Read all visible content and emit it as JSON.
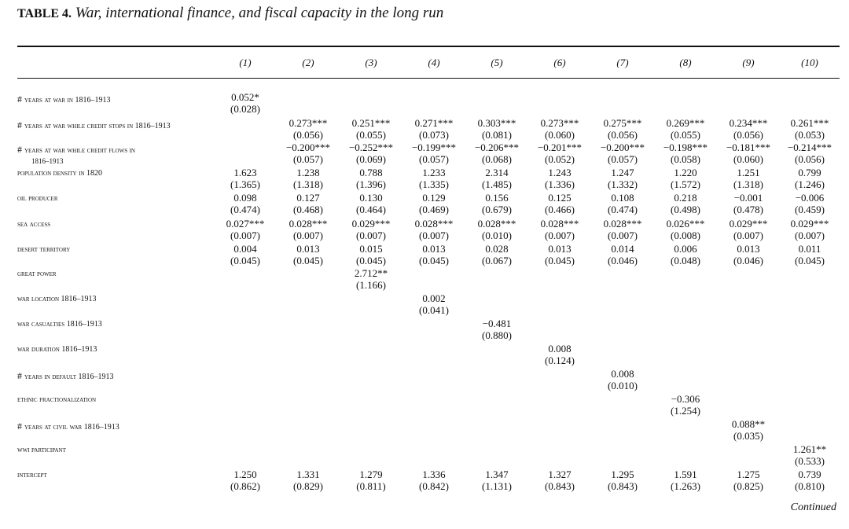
{
  "title": {
    "label": "TABLE 4.",
    "text": "War, international finance, and fiscal capacity in the long run"
  },
  "columns": [
    "(1)",
    "(2)",
    "(3)",
    "(4)",
    "(5)",
    "(6)",
    "(7)",
    "(8)",
    "(9)",
    "(10)"
  ],
  "rows": [
    {
      "hash": true,
      "label": "Years at war in 1816–1913",
      "coef": [
        "0.052*",
        "",
        "",
        "",
        "",
        "",
        "",
        "",
        "",
        ""
      ],
      "se": [
        "(0.028)",
        "",
        "",
        "",
        "",
        "",
        "",
        "",
        "",
        ""
      ]
    },
    {
      "hash": true,
      "label": "Years at war while credit stops in 1816–1913",
      "coef": [
        "",
        "0.273***",
        "0.251***",
        "0.271***",
        "0.303***",
        "0.273***",
        "0.275***",
        "0.269***",
        "0.234***",
        "0.261***"
      ],
      "se": [
        "",
        "(0.056)",
        "(0.055)",
        "(0.073)",
        "(0.081)",
        "(0.060)",
        "(0.056)",
        "(0.055)",
        "(0.056)",
        "(0.053)"
      ]
    },
    {
      "hash": true,
      "label": "Years at war while credit flows in",
      "sub": "1816–1913",
      "coef": [
        "",
        "−0.200***",
        "−0.252***",
        "−0.199***",
        "−0.206***",
        "−0.201***",
        "−0.200***",
        "−0.198***",
        "−0.181***",
        "−0.214***"
      ],
      "se": [
        "",
        "(0.057)",
        "(0.069)",
        "(0.057)",
        "(0.068)",
        "(0.052)",
        "(0.057)",
        "(0.058)",
        "(0.060)",
        "(0.056)"
      ]
    },
    {
      "hash": false,
      "label": "Population density in 1820",
      "coef": [
        "1.623",
        "1.238",
        "0.788",
        "1.233",
        "2.314",
        "1.243",
        "1.247",
        "1.220",
        "1.251",
        "0.799"
      ],
      "se": [
        "(1.365)",
        "(1.318)",
        "(1.396)",
        "(1.335)",
        "(1.485)",
        "(1.336)",
        "(1.332)",
        "(1.572)",
        "(1.318)",
        "(1.246)"
      ]
    },
    {
      "hash": false,
      "label": "Oil producer",
      "coef": [
        "0.098",
        "0.127",
        "0.130",
        "0.129",
        "0.156",
        "0.125",
        "0.108",
        "0.218",
        "−0.001",
        "−0.006"
      ],
      "se": [
        "(0.474)",
        "(0.468)",
        "(0.464)",
        "(0.469)",
        "(0.679)",
        "(0.466)",
        "(0.474)",
        "(0.498)",
        "(0.478)",
        "(0.459)"
      ]
    },
    {
      "hash": false,
      "label": "Sea access",
      "coef": [
        "0.027***",
        "0.028***",
        "0.029***",
        "0.028***",
        "0.028***",
        "0.028***",
        "0.028***",
        "0.026***",
        "0.029***",
        "0.029***"
      ],
      "se": [
        "(0.007)",
        "(0.007)",
        "(0.007)",
        "(0.007)",
        "(0.010)",
        "(0.007)",
        "(0.007)",
        "(0.008)",
        "(0.007)",
        "(0.007)"
      ]
    },
    {
      "hash": false,
      "label": "Desert territory",
      "coef": [
        "0.004",
        "0.013",
        "0.015",
        "0.013",
        "0.028",
        "0.013",
        "0.014",
        "0.006",
        "0.013",
        "0.011"
      ],
      "se": [
        "(0.045)",
        "(0.045)",
        "(0.045)",
        "(0.045)",
        "(0.067)",
        "(0.045)",
        "(0.046)",
        "(0.048)",
        "(0.046)",
        "(0.045)"
      ]
    },
    {
      "hash": false,
      "label": "Great power",
      "coef": [
        "",
        "",
        "2.712**",
        "",
        "",
        "",
        "",
        "",
        "",
        ""
      ],
      "se": [
        "",
        "",
        "(1.166)",
        "",
        "",
        "",
        "",
        "",
        "",
        ""
      ]
    },
    {
      "hash": false,
      "label": "War location 1816–1913",
      "coef": [
        "",
        "",
        "",
        "0.002",
        "",
        "",
        "",
        "",
        "",
        ""
      ],
      "se": [
        "",
        "",
        "",
        "(0.041)",
        "",
        "",
        "",
        "",
        "",
        ""
      ]
    },
    {
      "hash": false,
      "label": "War casualties 1816–1913",
      "coef": [
        "",
        "",
        "",
        "",
        "−0.481",
        "",
        "",
        "",
        "",
        ""
      ],
      "se": [
        "",
        "",
        "",
        "",
        "(0.880)",
        "",
        "",
        "",
        "",
        ""
      ]
    },
    {
      "hash": false,
      "label": "War duration 1816–1913",
      "coef": [
        "",
        "",
        "",
        "",
        "",
        "0.008",
        "",
        "",
        "",
        ""
      ],
      "se": [
        "",
        "",
        "",
        "",
        "",
        "(0.124)",
        "",
        "",
        "",
        ""
      ]
    },
    {
      "hash": true,
      "label": "Years in default 1816–1913",
      "coef": [
        "",
        "",
        "",
        "",
        "",
        "",
        "0.008",
        "",
        "",
        ""
      ],
      "se": [
        "",
        "",
        "",
        "",
        "",
        "",
        "(0.010)",
        "",
        "",
        ""
      ]
    },
    {
      "hash": false,
      "label": "Ethnic fractionalization",
      "coef": [
        "",
        "",
        "",
        "",
        "",
        "",
        "",
        "−0.306",
        "",
        ""
      ],
      "se": [
        "",
        "",
        "",
        "",
        "",
        "",
        "",
        "(1.254)",
        "",
        ""
      ]
    },
    {
      "hash": true,
      "label": "Years at civil war 1816–1913",
      "coef": [
        "",
        "",
        "",
        "",
        "",
        "",
        "",
        "",
        "0.088**",
        ""
      ],
      "se": [
        "",
        "",
        "",
        "",
        "",
        "",
        "",
        "",
        "(0.035)",
        ""
      ]
    },
    {
      "hash": false,
      "label": "WWI participant",
      "coef": [
        "",
        "",
        "",
        "",
        "",
        "",
        "",
        "",
        "",
        "1.261**"
      ],
      "se": [
        "",
        "",
        "",
        "",
        "",
        "",
        "",
        "",
        "",
        "(0.533)"
      ]
    },
    {
      "hash": false,
      "label": "Intercept",
      "coef": [
        "1.250",
        "1.331",
        "1.279",
        "1.336",
        "1.347",
        "1.327",
        "1.295",
        "1.591",
        "1.275",
        "0.739"
      ],
      "se": [
        "(0.862)",
        "(0.829)",
        "(0.811)",
        "(0.842)",
        "(1.131)",
        "(0.843)",
        "(0.843)",
        "(1.263)",
        "(0.825)",
        "(0.810)"
      ]
    }
  ],
  "footer": {
    "continued": "Continued"
  }
}
